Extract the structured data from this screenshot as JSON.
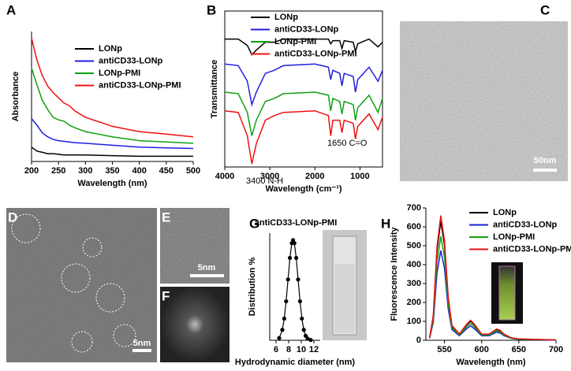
{
  "chart_data": [
    {
      "type": "line",
      "label": "A",
      "x_label": "Wavelength (nm)",
      "y_label": "Absorbance",
      "x": [
        200,
        210,
        220,
        230,
        240,
        250,
        260,
        270,
        280,
        300,
        350,
        400,
        450,
        500
      ],
      "series": [
        {
          "name": "LONp",
          "color": "#000000",
          "values": [
            0.11,
            0.08,
            0.07,
            0.06,
            0.06,
            0.055,
            0.05,
            0.05,
            0.05,
            0.05,
            0.045,
            0.04,
            0.04,
            0.04
          ]
        },
        {
          "name": "antiCD33-LONp",
          "color": "#1f1fe0",
          "values": [
            0.33,
            0.28,
            0.22,
            0.19,
            0.17,
            0.16,
            0.155,
            0.15,
            0.145,
            0.14,
            0.125,
            0.11,
            0.105,
            0.1
          ]
        },
        {
          "name": "LONp-PMI",
          "color": "#10a010",
          "values": [
            0.72,
            0.59,
            0.47,
            0.4,
            0.34,
            0.32,
            0.31,
            0.28,
            0.26,
            0.23,
            0.19,
            0.16,
            0.15,
            0.14
          ]
        },
        {
          "name": "antiCD33-LONp-PMI",
          "color": "#ee1111",
          "values": [
            0.95,
            0.78,
            0.66,
            0.58,
            0.53,
            0.49,
            0.45,
            0.43,
            0.39,
            0.34,
            0.27,
            0.23,
            0.21,
            0.19
          ]
        }
      ],
      "xlim": [
        200,
        500
      ],
      "xticks": [
        200,
        250,
        300,
        350,
        400,
        450,
        500
      ],
      "ylim": [
        0,
        1
      ],
      "legend": "upper right"
    },
    {
      "type": "line",
      "label": "B",
      "x_label": "Wavelength (cm⁻¹)",
      "y_label": "Transmittance",
      "x": [
        4000,
        3700,
        3500,
        3400,
        3300,
        3100,
        2900,
        2700,
        2000,
        1700,
        1650,
        1600,
        1450,
        1400,
        1350,
        1150,
        1100,
        1050,
        800,
        600,
        500
      ],
      "series": [
        {
          "name": "LONp",
          "color": "#000000",
          "values": [
            0.82,
            0.82,
            0.78,
            0.72,
            0.75,
            0.8,
            0.8,
            0.82,
            0.82,
            0.82,
            0.79,
            0.81,
            0.81,
            0.76,
            0.81,
            0.8,
            0.74,
            0.79,
            0.82,
            0.77,
            0.8
          ]
        },
        {
          "name": "antiCD33-LONp",
          "color": "#1f1fe0",
          "values": [
            0.66,
            0.65,
            0.55,
            0.4,
            0.48,
            0.6,
            0.62,
            0.65,
            0.66,
            0.64,
            0.56,
            0.62,
            0.6,
            0.52,
            0.6,
            0.58,
            0.48,
            0.56,
            0.64,
            0.55,
            0.62
          ]
        },
        {
          "name": "LONp-PMI",
          "color": "#10a010",
          "values": [
            0.48,
            0.47,
            0.35,
            0.2,
            0.3,
            0.42,
            0.44,
            0.47,
            0.48,
            0.46,
            0.36,
            0.44,
            0.42,
            0.34,
            0.42,
            0.4,
            0.3,
            0.38,
            0.46,
            0.35,
            0.44
          ]
        },
        {
          "name": "antiCD33-LONp-PMI",
          "color": "#ee1111",
          "values": [
            0.36,
            0.35,
            0.2,
            0.02,
            0.15,
            0.3,
            0.33,
            0.35,
            0.36,
            0.33,
            0.2,
            0.3,
            0.3,
            0.22,
            0.3,
            0.28,
            0.18,
            0.26,
            0.34,
            0.24,
            0.32
          ]
        }
      ],
      "xlim": [
        4000,
        500
      ],
      "xticks": [
        4000,
        3000,
        2000,
        1000
      ],
      "ylim": [
        0,
        1
      ],
      "legend": "upper right",
      "annotations": [
        "3400 N-H",
        "1650 C=O"
      ]
    },
    {
      "type": "scatter",
      "label": "G",
      "title": "antiCD33-LONp-PMI",
      "x_label": "Hydrodynamic diameter (nm)",
      "y_label": "Distribution %",
      "x": [
        6.5,
        7,
        7.3,
        7.6,
        7.9,
        8.2,
        8.5,
        8.7,
        8.9,
        9.2,
        9.5,
        9.8,
        10.1,
        10.4,
        10.7,
        11,
        11.5
      ],
      "values": [
        0.16,
        0.75,
        1.56,
        2.8,
        4.37,
        5.92,
        6.98,
        7.2,
        6.98,
        5.92,
        4.37,
        2.8,
        1.56,
        0.75,
        0.32,
        0.12,
        0.02
      ],
      "color": "#000000",
      "line": true,
      "xlim": [
        5,
        13
      ],
      "xticks": [
        6,
        8,
        10,
        12
      ],
      "ylim": [
        0,
        7.7
      ]
    },
    {
      "type": "line",
      "label": "H",
      "x_label": "Wavelength (nm)",
      "y_label": "Fluorescence Intensity",
      "x": [
        530,
        535,
        540,
        545,
        550,
        555,
        560,
        570,
        580,
        585,
        590,
        600,
        610,
        620,
        625,
        630,
        640,
        650,
        700
      ],
      "series": [
        {
          "name": "LONp",
          "color": "#000000",
          "values": [
            13,
            126,
            473,
            630,
            504,
            221,
            76,
            32,
            82,
            101,
            82,
            32,
            32,
            57,
            50,
            32,
            13,
            6,
            2
          ]
        },
        {
          "name": "antiCD33-LONp",
          "color": "#1f1fe0",
          "values": [
            10,
            95,
            356,
            475,
            380,
            166,
            57,
            24,
            62,
            76,
            62,
            24,
            24,
            43,
            38,
            24,
            10,
            5,
            1
          ]
        },
        {
          "name": "LONp-PMI",
          "color": "#10a010",
          "values": [
            11,
            110,
            413,
            550,
            440,
            193,
            66,
            28,
            72,
            88,
            72,
            28,
            28,
            50,
            44,
            28,
            11,
            6,
            2
          ]
        },
        {
          "name": "antiCD33-LONp-PMI",
          "color": "#ee1111",
          "values": [
            13,
            132,
            495,
            660,
            528,
            231,
            79,
            33,
            86,
            106,
            86,
            33,
            33,
            59,
            53,
            33,
            13,
            7,
            2
          ]
        }
      ],
      "xlim": [
        525,
        700
      ],
      "xticks": [
        550,
        600,
        650,
        700
      ],
      "ylim": [
        0,
        700
      ],
      "yticks": [
        0,
        100,
        200,
        300,
        400,
        500,
        600,
        700
      ],
      "legend": "upper right"
    }
  ],
  "images": [
    {
      "label": "C",
      "scale_bar": "50nm"
    },
    {
      "label": "D",
      "scale_bar": "5nm"
    },
    {
      "label": "E",
      "scale_bar": "5nm"
    },
    {
      "label": "F"
    }
  ]
}
